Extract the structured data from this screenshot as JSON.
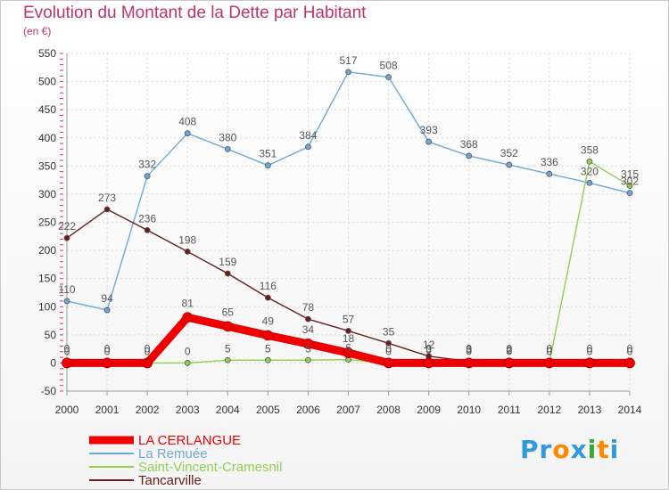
{
  "chart_data": {
    "type": "line",
    "title": "Evolution du Montant de la Dette par Habitant",
    "subtitle": "(en €)",
    "x": [
      "2000",
      "2001",
      "2002",
      "2003",
      "2004",
      "2005",
      "2006",
      "2007",
      "2008",
      "2009",
      "2010",
      "2011",
      "2012",
      "2013",
      "2014"
    ],
    "ylim": [
      -50,
      550
    ],
    "yticks": [
      -50,
      0,
      50,
      100,
      150,
      200,
      250,
      300,
      350,
      400,
      450,
      500,
      550
    ],
    "grid": true,
    "legend_position": "bottom-left",
    "series": [
      {
        "name": "LA CERLANGUE",
        "color": "#ee0000",
        "values": [
          0,
          0,
          0,
          81,
          65,
          49,
          34,
          18,
          0,
          0,
          0,
          0,
          0,
          0,
          0
        ]
      },
      {
        "name": "La Remuée",
        "color": "#6fa8d6",
        "values": [
          110,
          94,
          332,
          408,
          380,
          351,
          384,
          517,
          508,
          393,
          368,
          352,
          336,
          320,
          302
        ]
      },
      {
        "name": "Saint-Vincent-Cramesnil",
        "color": "#8fd050",
        "values": [
          0,
          0,
          0,
          0,
          5,
          5,
          5,
          6,
          0,
          3,
          0,
          0,
          0,
          358,
          315
        ]
      },
      {
        "name": "Tancarville",
        "color": "#6b1d1d",
        "values": [
          222,
          273,
          236,
          198,
          159,
          116,
          78,
          57,
          35,
          12,
          3,
          2,
          0,
          0,
          0
        ]
      }
    ]
  },
  "logo": {
    "text": "Proxiti",
    "letters": [
      "P",
      "r",
      "o",
      "x",
      "i",
      "t",
      "i"
    ],
    "colors": [
      "#3399dd",
      "#3399dd",
      "#ff8800",
      "#3399dd",
      "#33aa33",
      "#ff8800",
      "#3399dd"
    ]
  }
}
